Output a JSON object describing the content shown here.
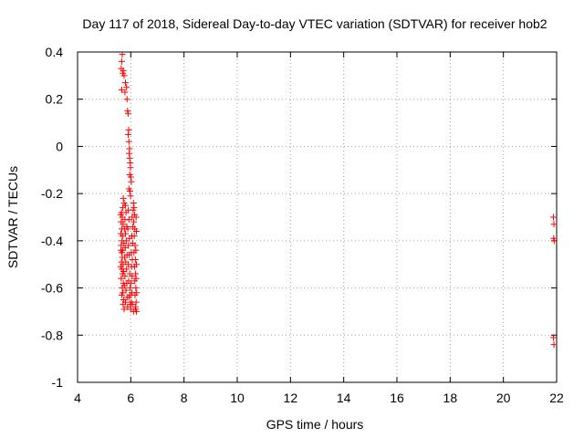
{
  "chart_data": {
    "type": "scatter",
    "title": "Day 117 of 2018, Sidereal Day-to-day VTEC variation (SDTVAR) for receiver hob2",
    "xlabel": "GPS time / hours",
    "ylabel": "SDTVAR / TECUs",
    "xlim": [
      4,
      22
    ],
    "ylim": [
      -1,
      0.4
    ],
    "xticks": [
      4,
      6,
      8,
      10,
      12,
      14,
      16,
      18,
      20,
      22
    ],
    "xtick_labels": [
      "4",
      "6",
      "8",
      "10",
      "12",
      "14",
      "16",
      "18",
      "20",
      "22"
    ],
    "yticks": [
      0.4,
      0.2,
      0,
      -0.2,
      -0.4,
      -0.6,
      -0.8,
      -1
    ],
    "ytick_labels": [
      "0.4",
      "0.2",
      "0",
      "-0.2",
      "-0.4",
      "-0.6",
      "-0.8",
      "-1"
    ],
    "grid": true,
    "marker": "+",
    "color": "#ff0000",
    "series": [
      {
        "name": "SDTVAR",
        "points": [
          [
            5.68,
            0.39
          ],
          [
            5.66,
            0.36
          ],
          [
            5.64,
            0.33
          ],
          [
            5.7,
            0.31
          ],
          [
            5.75,
            0.3
          ],
          [
            5.72,
            0.32
          ],
          [
            5.8,
            0.27
          ],
          [
            5.84,
            0.25
          ],
          [
            5.66,
            0.24
          ],
          [
            5.78,
            0.23
          ],
          [
            5.86,
            0.2
          ],
          [
            5.88,
            0.15
          ],
          [
            5.9,
            0.14
          ],
          [
            5.92,
            0.07
          ],
          [
            5.9,
            0.05
          ],
          [
            5.93,
            0.02
          ],
          [
            5.95,
            -0.01
          ],
          [
            5.94,
            -0.03
          ],
          [
            5.96,
            -0.05
          ],
          [
            5.98,
            -0.07
          ],
          [
            5.99,
            -0.09
          ],
          [
            5.96,
            -0.12
          ],
          [
            6.0,
            -0.13
          ],
          [
            6.02,
            -0.15
          ],
          [
            5.93,
            -0.18
          ],
          [
            5.97,
            -0.19
          ],
          [
            5.99,
            -0.21
          ],
          [
            5.72,
            -0.22
          ],
          [
            5.75,
            -0.24
          ],
          [
            5.7,
            -0.26
          ],
          [
            5.65,
            -0.28
          ],
          [
            5.68,
            -0.3
          ],
          [
            5.64,
            -0.32
          ],
          [
            5.71,
            -0.33
          ],
          [
            5.66,
            -0.35
          ],
          [
            5.63,
            -0.37
          ],
          [
            5.69,
            -0.38
          ],
          [
            5.67,
            -0.4
          ],
          [
            5.64,
            -0.42
          ],
          [
            5.7,
            -0.44
          ],
          [
            5.66,
            -0.45
          ],
          [
            5.68,
            -0.47
          ],
          [
            5.65,
            -0.49
          ],
          [
            5.71,
            -0.5
          ],
          [
            5.67,
            -0.52
          ],
          [
            5.69,
            -0.54
          ],
          [
            5.64,
            -0.56
          ],
          [
            5.72,
            -0.58
          ],
          [
            5.68,
            -0.6
          ],
          [
            5.7,
            -0.62
          ],
          [
            5.66,
            -0.63
          ],
          [
            5.73,
            -0.65
          ],
          [
            5.71,
            -0.67
          ],
          [
            5.75,
            -0.69
          ],
          [
            5.8,
            -0.25
          ],
          [
            5.82,
            -0.28
          ],
          [
            5.78,
            -0.31
          ],
          [
            5.85,
            -0.34
          ],
          [
            5.8,
            -0.37
          ],
          [
            5.83,
            -0.4
          ],
          [
            5.79,
            -0.43
          ],
          [
            5.86,
            -0.46
          ],
          [
            5.81,
            -0.49
          ],
          [
            5.84,
            -0.52
          ],
          [
            5.78,
            -0.55
          ],
          [
            5.85,
            -0.58
          ],
          [
            5.82,
            -0.61
          ],
          [
            5.86,
            -0.64
          ],
          [
            5.8,
            -0.66
          ],
          [
            5.88,
            -0.68
          ],
          [
            5.9,
            -0.27
          ],
          [
            5.93,
            -0.31
          ],
          [
            5.89,
            -0.35
          ],
          [
            5.95,
            -0.39
          ],
          [
            5.91,
            -0.42
          ],
          [
            5.94,
            -0.46
          ],
          [
            5.9,
            -0.5
          ],
          [
            5.96,
            -0.54
          ],
          [
            5.92,
            -0.57
          ],
          [
            5.97,
            -0.6
          ],
          [
            5.93,
            -0.64
          ],
          [
            5.98,
            -0.67
          ],
          [
            6.0,
            -0.69
          ],
          [
            6.02,
            -0.66
          ],
          [
            6.04,
            -0.62
          ],
          [
            6.01,
            -0.58
          ],
          [
            6.05,
            -0.55
          ],
          [
            6.03,
            -0.51
          ],
          [
            6.06,
            -0.48
          ],
          [
            6.02,
            -0.45
          ],
          [
            6.07,
            -0.41
          ],
          [
            6.04,
            -0.38
          ],
          [
            6.08,
            -0.34
          ],
          [
            6.05,
            -0.3
          ],
          [
            6.09,
            -0.27
          ],
          [
            6.1,
            -0.24
          ],
          [
            6.12,
            -0.26
          ],
          [
            6.14,
            -0.29
          ],
          [
            6.11,
            -0.32
          ],
          [
            6.15,
            -0.35
          ],
          [
            6.13,
            -0.38
          ],
          [
            6.16,
            -0.42
          ],
          [
            6.12,
            -0.45
          ],
          [
            6.17,
            -0.48
          ],
          [
            6.14,
            -0.51
          ],
          [
            6.18,
            -0.54
          ],
          [
            6.15,
            -0.57
          ],
          [
            6.19,
            -0.6
          ],
          [
            6.16,
            -0.63
          ],
          [
            6.2,
            -0.66
          ],
          [
            6.17,
            -0.68
          ],
          [
            6.21,
            -0.7
          ],
          [
            6.18,
            -0.69
          ],
          [
            6.1,
            -0.7
          ],
          [
            6.06,
            -0.67
          ],
          [
            5.98,
            -0.63
          ],
          [
            5.76,
            -0.35
          ],
          [
            5.74,
            -0.41
          ],
          [
            5.77,
            -0.47
          ],
          [
            5.73,
            -0.53
          ],
          [
            5.76,
            -0.59
          ],
          [
            5.62,
            -0.29
          ],
          [
            5.63,
            -0.44
          ],
          [
            5.62,
            -0.51
          ],
          [
            6.2,
            -0.3
          ],
          [
            6.21,
            -0.36
          ],
          [
            6.19,
            -0.44
          ],
          [
            6.21,
            -0.5
          ],
          [
            6.2,
            -0.56
          ],
          [
            6.22,
            -0.62
          ],
          [
            21.88,
            -0.3
          ],
          [
            21.9,
            -0.33
          ],
          [
            21.89,
            -0.39
          ],
          [
            21.91,
            -0.4
          ],
          [
            21.88,
            -0.81
          ],
          [
            21.9,
            -0.84
          ]
        ]
      }
    ]
  }
}
